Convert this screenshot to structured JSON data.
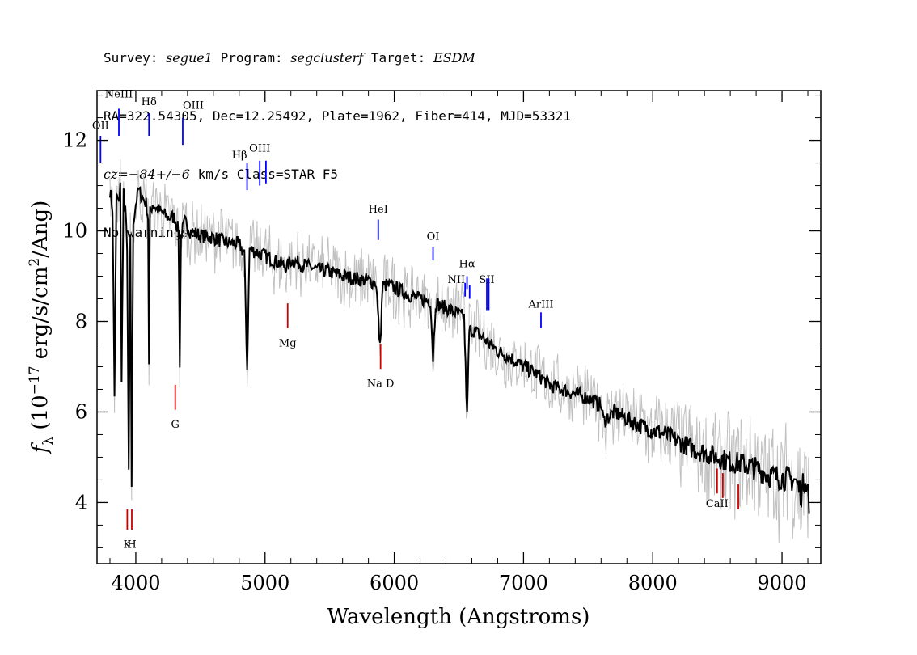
{
  "header": {
    "survey_label": "Survey: ",
    "survey": "segue1",
    "program_label": " Program: ",
    "program": "segclusterf",
    "target_label": " Target: ",
    "target": "ESDM",
    "line2": "RA=322.54305, Dec=12.25492, Plate=1962, Fiber=414, MJD=53321",
    "cz_label": "cz",
    "cz_value": "=−84+/−6",
    "cz_rest": " km/s Class=STAR F5",
    "line4": "No warnings."
  },
  "chart_data": {
    "type": "line",
    "xlabel": "Wavelength (Angstroms)",
    "ylabel_parts": [
      "f",
      "λ",
      " (10",
      "−17",
      " erg/s/cm",
      "2",
      "/Ang)"
    ],
    "xlim": [
      3700,
      9300
    ],
    "ylim": [
      2.65,
      13.1
    ],
    "xticks": [
      4000,
      5000,
      6000,
      7000,
      8000,
      9000
    ],
    "yticks": [
      4,
      6,
      8,
      10,
      12
    ],
    "x_minor_step": 200,
    "y_minor_step": 0.5,
    "grid": false,
    "colors": {
      "spectrum": "#000000",
      "noisy": "#c0c0c0",
      "emission": "#0000ff",
      "absorption": "#cc0000"
    },
    "series": [
      {
        "style": "spectrum",
        "x": [
          3800,
          3820,
          3835,
          3850,
          3865,
          3880,
          3890,
          3905,
          3920,
          3933,
          3945,
          3958,
          3968,
          3980,
          4000,
          4020,
          4040,
          4060,
          4080,
          4095,
          4102,
          4110,
          4130,
          4160,
          4200,
          4250,
          4300,
          4330,
          4340,
          4350,
          4380,
          4420,
          4500,
          4600,
          4700,
          4800,
          4840,
          4861,
          4880,
          4920,
          5000,
          5100,
          5170,
          5200,
          5300,
          5400,
          5500,
          5600,
          5700,
          5800,
          5860,
          5890,
          5910,
          5950,
          6000,
          6100,
          6200,
          6280,
          6300,
          6320,
          6400,
          6500,
          6540,
          6563,
          6580,
          6620,
          6700,
          6800,
          6900,
          7000,
          7100,
          7200,
          7300,
          7400,
          7500,
          7600,
          7620,
          7700,
          7800,
          7900,
          8000,
          8100,
          8200,
          8300,
          8400,
          8500,
          8600,
          8700,
          8800,
          8900,
          9000,
          9100,
          9150,
          9180,
          9200,
          9210
        ],
        "y": [
          10.9,
          10.5,
          6.4,
          10.8,
          10.6,
          11.0,
          6.8,
          10.8,
          10.5,
          9.5,
          4.7,
          9.8,
          4.4,
          10.2,
          10.6,
          10.9,
          10.8,
          10.7,
          10.6,
          10.3,
          7.0,
          10.4,
          10.6,
          10.5,
          10.4,
          10.3,
          10.3,
          10.0,
          7.1,
          9.9,
          10.2,
          10.0,
          9.9,
          9.85,
          9.75,
          9.7,
          9.5,
          6.95,
          9.6,
          9.55,
          9.45,
          9.3,
          9.2,
          9.35,
          9.25,
          9.15,
          9.1,
          9.0,
          8.95,
          8.9,
          8.85,
          7.4,
          8.8,
          8.8,
          8.75,
          8.6,
          8.5,
          8.45,
          7.2,
          8.4,
          8.3,
          8.15,
          8.1,
          5.9,
          7.8,
          7.8,
          7.6,
          7.35,
          7.2,
          7.0,
          6.85,
          6.6,
          6.5,
          6.4,
          6.3,
          6.15,
          5.8,
          6.0,
          5.85,
          5.7,
          5.6,
          5.5,
          5.35,
          5.2,
          5.1,
          5.0,
          4.9,
          4.85,
          4.75,
          4.6,
          4.55,
          4.5,
          4.2,
          4.6,
          4.3,
          3.8
        ]
      }
    ],
    "lines": [
      {
        "label": "OII",
        "x": 3727,
        "y0": 11.5,
        "y1": 12.1,
        "kind": "emission",
        "ly": 12.25,
        "anchor": "middle"
      },
      {
        "label": "NeIII",
        "x": 3869,
        "y0": 12.1,
        "y1": 12.7,
        "kind": "emission",
        "ly": 12.95,
        "anchor": "middle"
      },
      {
        "label": "Hδ",
        "x": 4102,
        "y0": 12.1,
        "y1": 12.6,
        "kind": "emission",
        "ly": 12.78,
        "anchor": "middle"
      },
      {
        "label": "OIII",
        "x": 4363,
        "y0": 11.9,
        "y1": 12.5,
        "kind": "emission",
        "ly": 12.7,
        "anchor": "start"
      },
      {
        "label": "Hβ",
        "x": 4861,
        "y0": 10.9,
        "y1": 11.5,
        "kind": "emission",
        "ly": 11.6,
        "anchor": "end"
      },
      {
        "label": "OIII",
        "x": 4959,
        "y0": 11.0,
        "y1": 11.55,
        "kind": "emission",
        "ly": 11.75,
        "anchor": "middle"
      },
      {
        "label": "OIII",
        "x": 5007,
        "y0": 11.05,
        "y1": 11.55,
        "kind": "emission",
        "ly": -1,
        "anchor": "middle"
      },
      {
        "label": "HeI",
        "x": 5876,
        "y0": 9.8,
        "y1": 10.25,
        "kind": "emission",
        "ly": 10.4,
        "anchor": "middle"
      },
      {
        "label": "OI",
        "x": 6300,
        "y0": 9.35,
        "y1": 9.65,
        "kind": "emission",
        "ly": 9.8,
        "anchor": "middle"
      },
      {
        "label": "NII",
        "x": 6548,
        "y0": 8.55,
        "y1": 8.85,
        "kind": "emission",
        "ly": 8.85,
        "anchor": "end"
      },
      {
        "label": "Hα",
        "x": 6563,
        "y0": 8.7,
        "y1": 9.0,
        "kind": "emission",
        "ly": 9.2,
        "anchor": "middle"
      },
      {
        "label": "NII",
        "x": 6583,
        "y0": 8.5,
        "y1": 8.8,
        "kind": "emission",
        "ly": -1,
        "anchor": "middle"
      },
      {
        "label": "SII",
        "x": 6716,
        "y0": 8.25,
        "y1": 8.95,
        "kind": "emission",
        "ly": 8.85,
        "anchor": "middle"
      },
      {
        "label": "SII",
        "x": 6731,
        "y0": 8.25,
        "y1": 8.95,
        "kind": "emission",
        "ly": -1,
        "anchor": "middle"
      },
      {
        "label": "ArIII",
        "x": 7135,
        "y0": 7.85,
        "y1": 8.2,
        "kind": "emission",
        "ly": 8.3,
        "anchor": "middle"
      },
      {
        "label": "K",
        "x": 3934,
        "y0": 3.4,
        "y1": 3.85,
        "kind": "absorption",
        "ly": 3.0,
        "anchor": "middle"
      },
      {
        "label": "H",
        "x": 3969,
        "y0": 3.4,
        "y1": 3.85,
        "kind": "absorption",
        "ly": 3.0,
        "anchor": "middle"
      },
      {
        "label": "G",
        "x": 4305,
        "y0": 6.05,
        "y1": 6.6,
        "kind": "absorption",
        "ly": 5.65,
        "anchor": "middle"
      },
      {
        "label": "Mg",
        "x": 5175,
        "y0": 7.85,
        "y1": 8.4,
        "kind": "absorption",
        "ly": 7.45,
        "anchor": "middle"
      },
      {
        "label": "Na D",
        "x": 5894,
        "y0": 6.95,
        "y1": 7.5,
        "kind": "absorption",
        "ly": 6.55,
        "anchor": "middle"
      },
      {
        "label": "CaII",
        "x": 8498,
        "y0": 4.2,
        "y1": 4.75,
        "kind": "absorption",
        "ly": 3.9,
        "anchor": "middle"
      },
      {
        "label": "CaII",
        "x": 8542,
        "y0": 4.1,
        "y1": 4.65,
        "kind": "absorption",
        "ly": -1,
        "anchor": "middle"
      },
      {
        "label": "CaII",
        "x": 8662,
        "y0": 3.85,
        "y1": 4.4,
        "kind": "absorption",
        "ly": -1,
        "anchor": "middle"
      }
    ]
  }
}
